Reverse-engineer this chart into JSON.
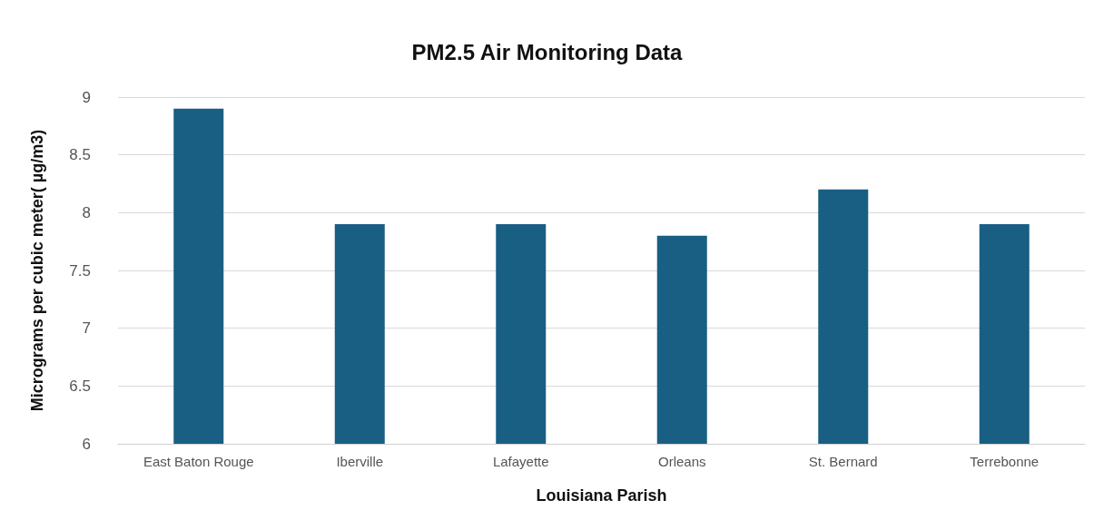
{
  "chart_data": {
    "type": "bar",
    "title": "PM2.5 Air Monitoring Data",
    "xlabel": "Louisiana Parish",
    "ylabel": "Micrograms per cubic meter( µg/m3)",
    "categories": [
      "East Baton Rouge",
      "Iberville",
      "Lafayette",
      "Orleans",
      "St. Bernard",
      "Terrebonne"
    ],
    "values": [
      8.9,
      7.9,
      7.9,
      7.8,
      8.2,
      7.9
    ],
    "color": "#195e83",
    "ylim": [
      6,
      9
    ],
    "yticks": [
      6,
      6.5,
      7,
      7.5,
      8,
      8.5,
      9
    ],
    "grid": "y"
  }
}
